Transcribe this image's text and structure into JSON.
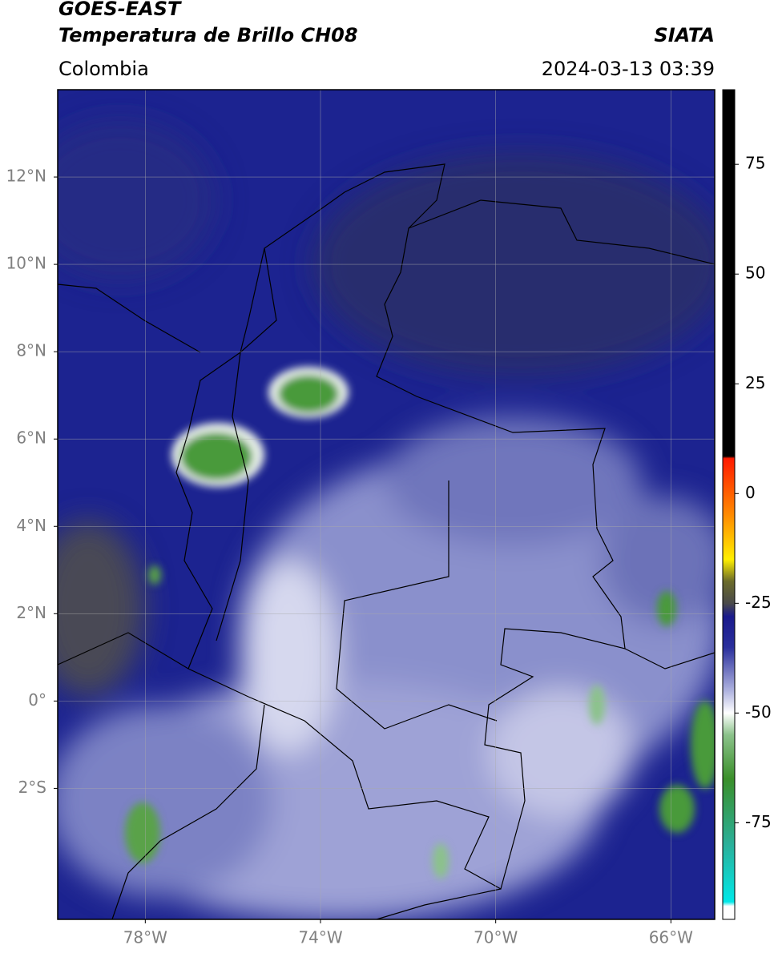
{
  "header": {
    "title": "GOES-EAST",
    "subtitle": "Temperatura de Brillo CH08",
    "source": "SIATA",
    "region": "Colombia",
    "datetime": "2024-03-13 03:39"
  },
  "map": {
    "lon_range": [
      -80,
      -65
    ],
    "lat_range": [
      -5,
      14
    ],
    "lat_ticks": [
      {
        "value": 12,
        "label": "12°N"
      },
      {
        "value": 10,
        "label": "10°N"
      },
      {
        "value": 8,
        "label": "8°N"
      },
      {
        "value": 6,
        "label": "6°N"
      },
      {
        "value": 4,
        "label": "4°N"
      },
      {
        "value": 2,
        "label": "2°N"
      },
      {
        "value": 0,
        "label": "0°"
      },
      {
        "value": -2,
        "label": "2°S"
      }
    ],
    "lon_ticks": [
      {
        "value": -78,
        "label": "78°W"
      },
      {
        "value": -74,
        "label": "74°W"
      },
      {
        "value": -70,
        "label": "70°W"
      },
      {
        "value": -66,
        "label": "66°W"
      }
    ],
    "grid": true
  },
  "colorbar": {
    "range": [
      -97,
      92
    ],
    "ticks": [
      75,
      50,
      25,
      0,
      -25,
      -50,
      -75
    ],
    "stops": [
      {
        "value": 92,
        "color": "#000000"
      },
      {
        "value": 8.5,
        "color": "#000000"
      },
      {
        "value": 8,
        "color": "#ff1a00"
      },
      {
        "value": -5,
        "color": "#ff8c00"
      },
      {
        "value": -15,
        "color": "#ffef00"
      },
      {
        "value": -20,
        "color": "#6b6b2a"
      },
      {
        "value": -25,
        "color": "#4a4a4a"
      },
      {
        "value": -28,
        "color": "#1a1a8c"
      },
      {
        "value": -35,
        "color": "#2a2f9c"
      },
      {
        "value": -45,
        "color": "#b0b4e0"
      },
      {
        "value": -50,
        "color": "#ffffff"
      },
      {
        "value": -55,
        "color": "#8bc28a"
      },
      {
        "value": -65,
        "color": "#3a8f2a"
      },
      {
        "value": -80,
        "color": "#2ab09a"
      },
      {
        "value": -93,
        "color": "#00e8e8"
      },
      {
        "value": -94,
        "color": "#ffffff"
      },
      {
        "value": -97,
        "color": "#ffffff"
      }
    ]
  }
}
